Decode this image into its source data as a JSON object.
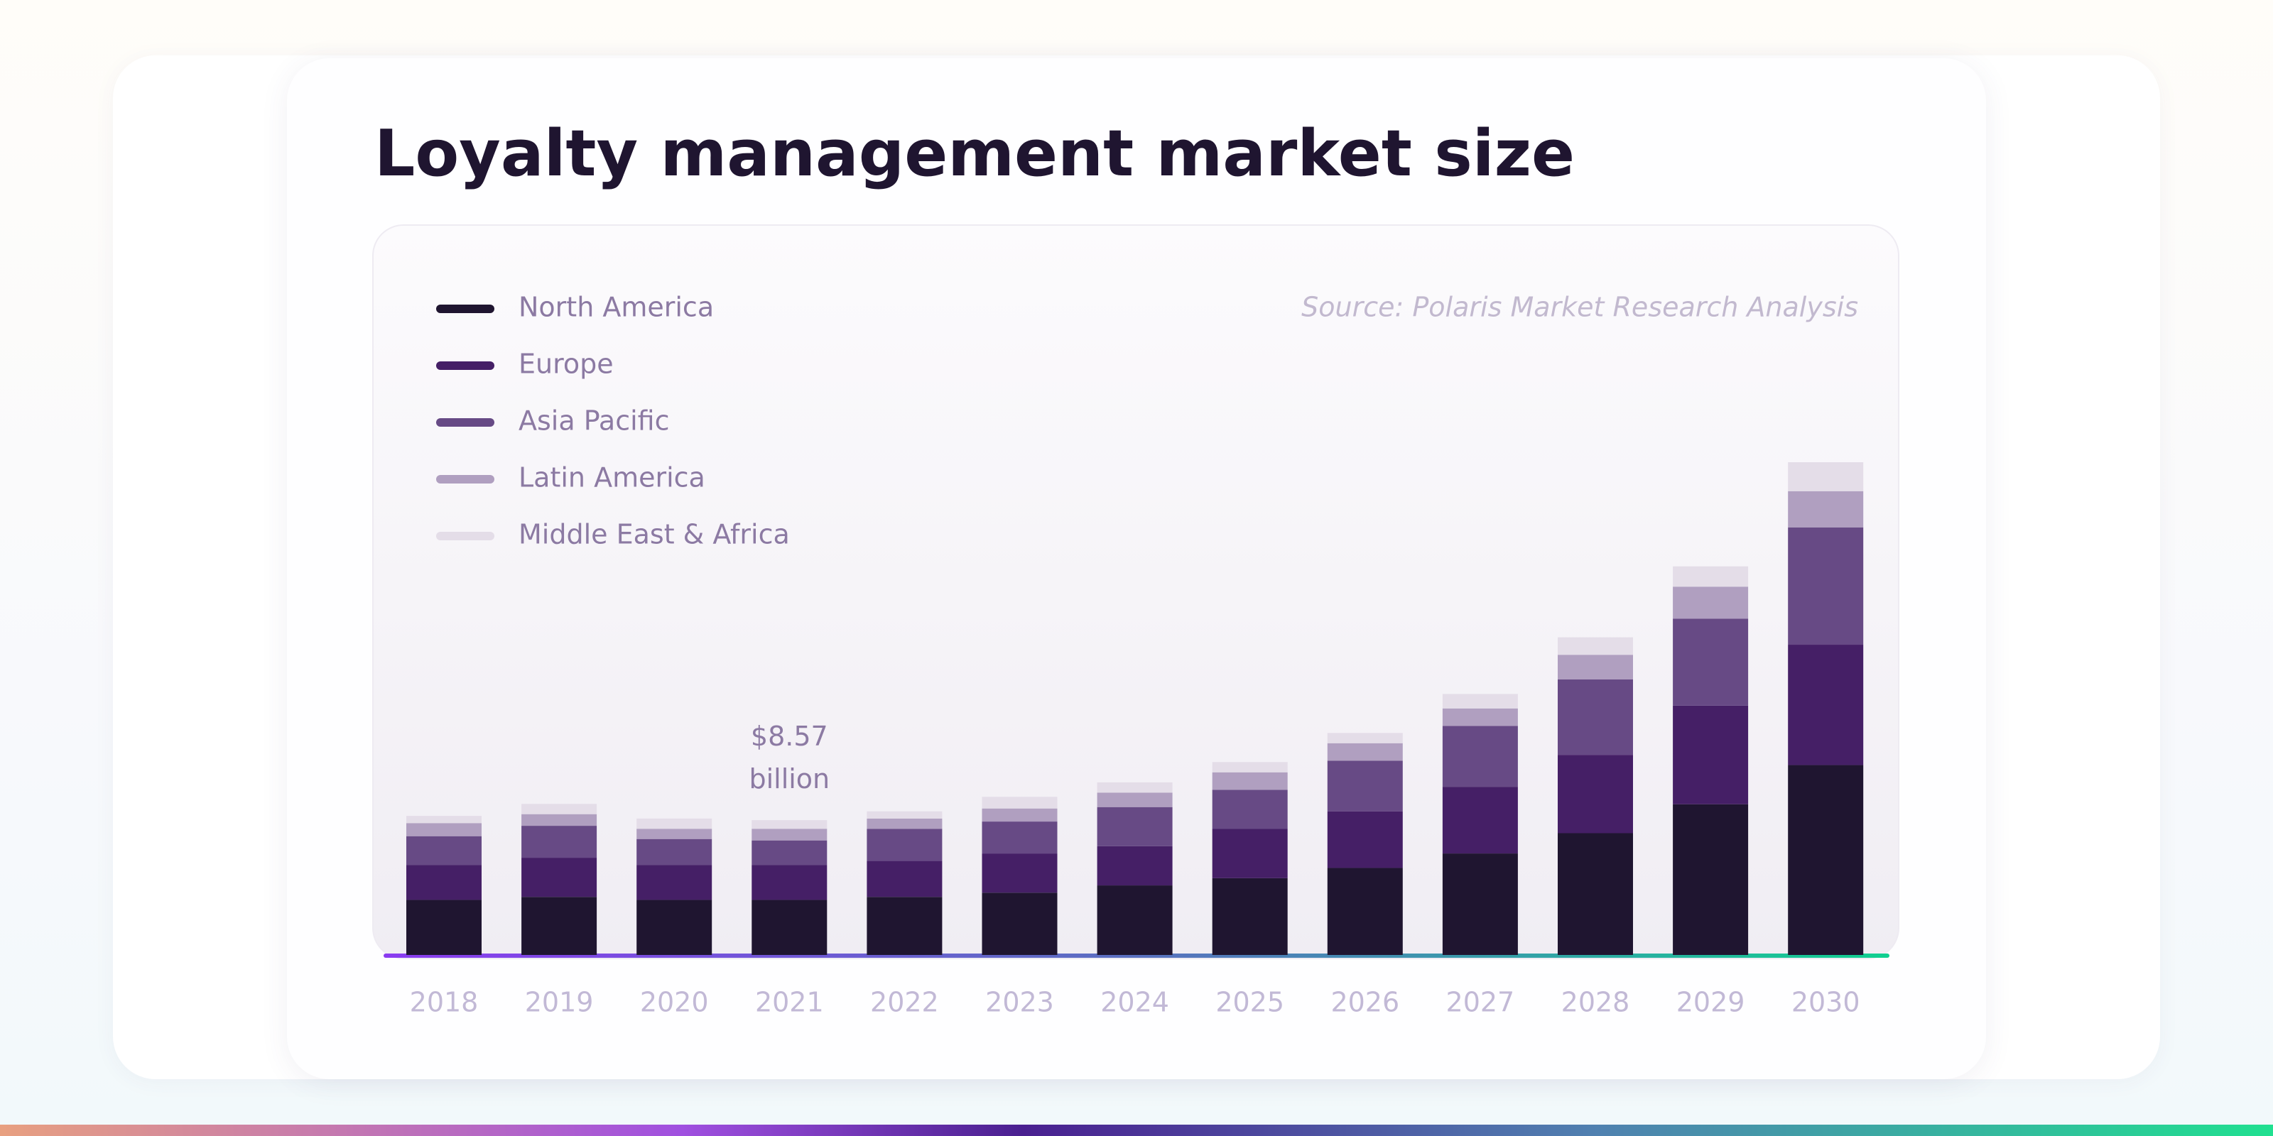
{
  "chart_data": {
    "type": "stacked_bar",
    "title": "Loyalty management market size",
    "source": "Source: Polaris Market Research Analysis",
    "categories": [
      "2018",
      "2019",
      "2020",
      "2021",
      "2022",
      "2023",
      "2024",
      "2025",
      "2026",
      "2027",
      "2028",
      "2029",
      "2030"
    ],
    "series": [
      {
        "name": "North America",
        "color": "#1f1530",
        "values": [
          3.5,
          3.69,
          3.5,
          3.5,
          3.69,
          3.96,
          4.42,
          4.88,
          5.53,
          6.45,
          7.74,
          9.58,
          12.07
        ]
      },
      {
        "name": "Europe",
        "color": "#451f66",
        "values": [
          2.21,
          2.49,
          2.21,
          2.21,
          2.3,
          2.49,
          2.49,
          3.13,
          3.59,
          4.24,
          4.98,
          6.27,
          7.65
        ]
      },
      {
        "name": "Asia Pacific",
        "color": "#674a85",
        "values": [
          1.84,
          2.03,
          1.66,
          1.57,
          2.03,
          2.03,
          2.49,
          2.49,
          3.23,
          3.87,
          4.79,
          5.53,
          7.46
        ]
      },
      {
        "name": "Latin America",
        "color": "#b09fc0",
        "values": [
          0.83,
          0.74,
          0.65,
          0.74,
          0.65,
          0.83,
          0.92,
          1.11,
          1.11,
          1.11,
          1.57,
          2.03,
          2.3
        ]
      },
      {
        "name": "Middle East & Africa",
        "color": "#e4dde8",
        "values": [
          0.46,
          0.65,
          0.65,
          0.55,
          0.46,
          0.74,
          0.65,
          0.65,
          0.65,
          0.92,
          1.11,
          1.29,
          1.84
        ]
      }
    ],
    "annotations": [
      {
        "x": "2021",
        "value": 8.57,
        "label": "$8.57 billion"
      }
    ]
  }
}
